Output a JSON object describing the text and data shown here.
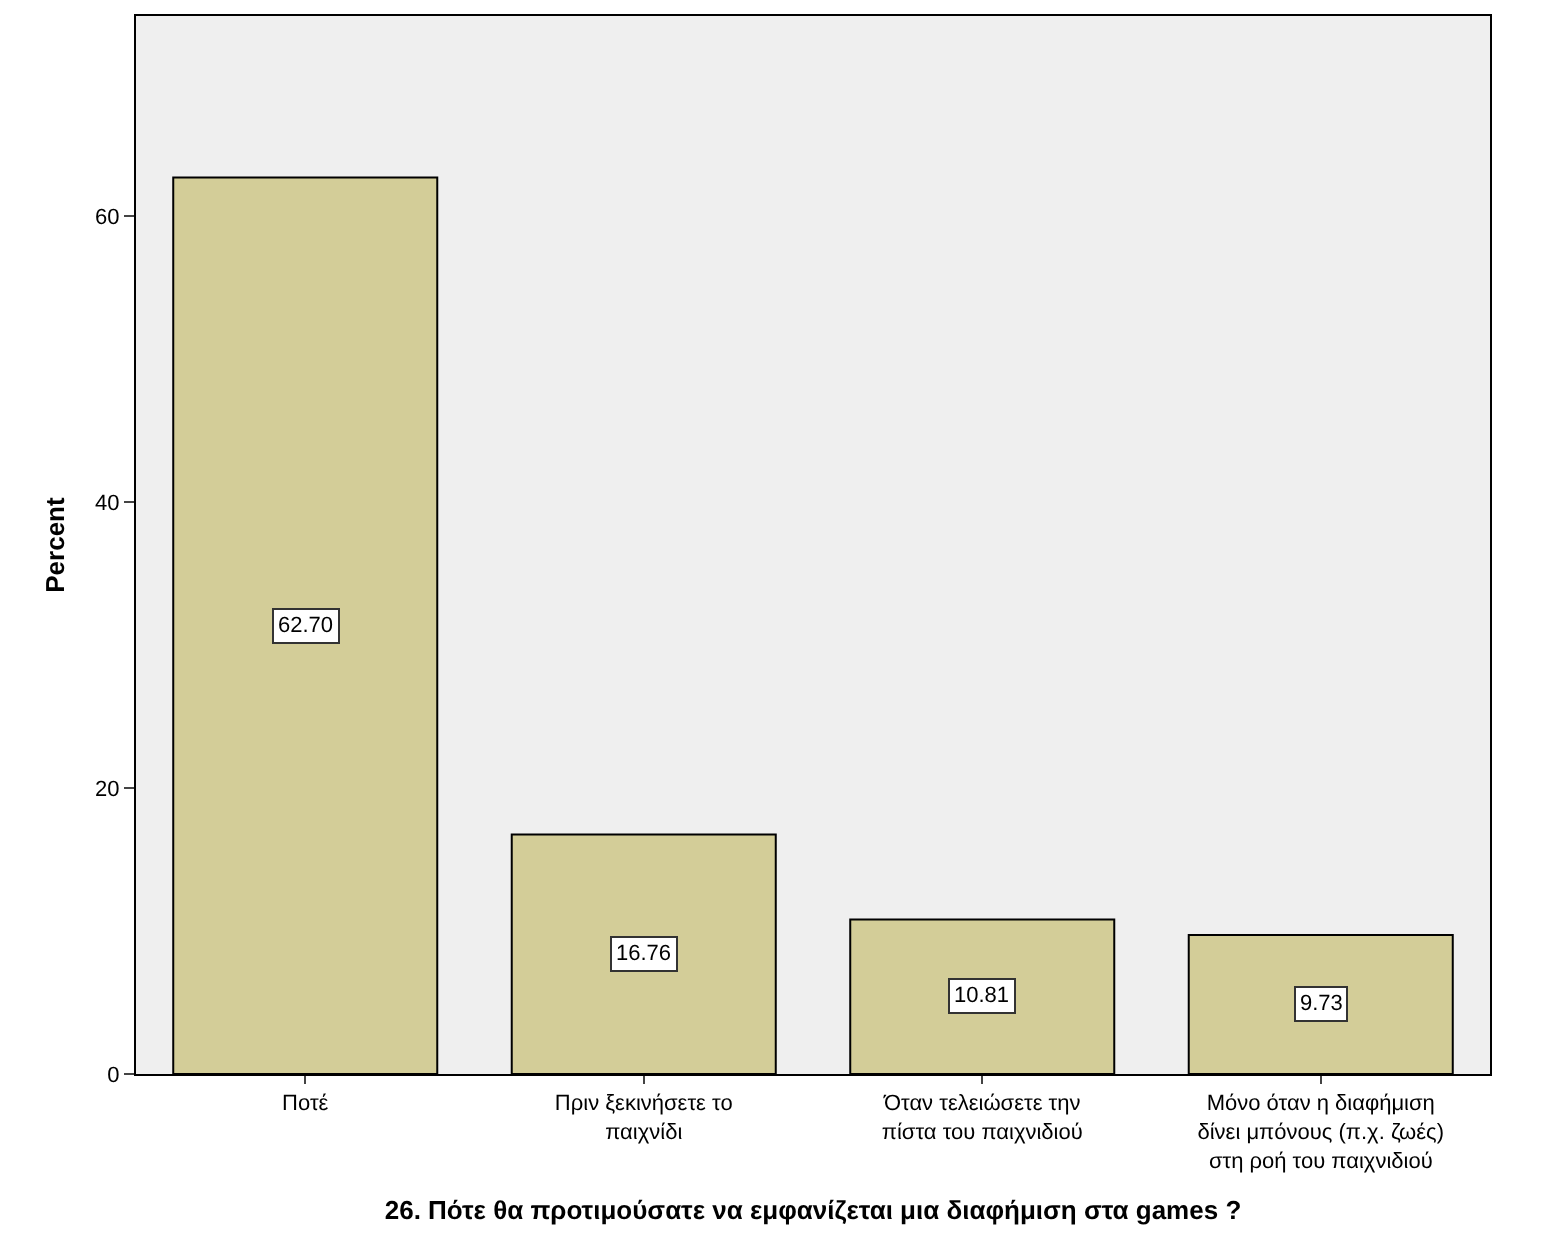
{
  "chart_data": {
    "type": "bar",
    "xlabel": "26. Πότε θα προτιμούσατε να εμφανίζεται μια διαφήμιση στα games ?",
    "ylabel": "Percent",
    "categories": [
      "Ποτέ",
      "Πριν ξεκινήσετε το\nπαιχνίδι",
      "Όταν τελειώσετε την\nπίστα του παιχνιδιού",
      "Μόνο όταν η διαφήμιση\nδίνει μπόνους (π.χ. ζωές)\nστη ροή του παιχνιδιού"
    ],
    "values": [
      62.7,
      16.76,
      10.81,
      9.73
    ],
    "value_labels": [
      "62.70",
      "16.76",
      "10.81",
      "9.73"
    ],
    "color": "#d3cd98",
    "ylim": [
      0,
      74
    ],
    "yticks": [
      0,
      20,
      40,
      60
    ],
    "grid": false,
    "legend": false
  }
}
